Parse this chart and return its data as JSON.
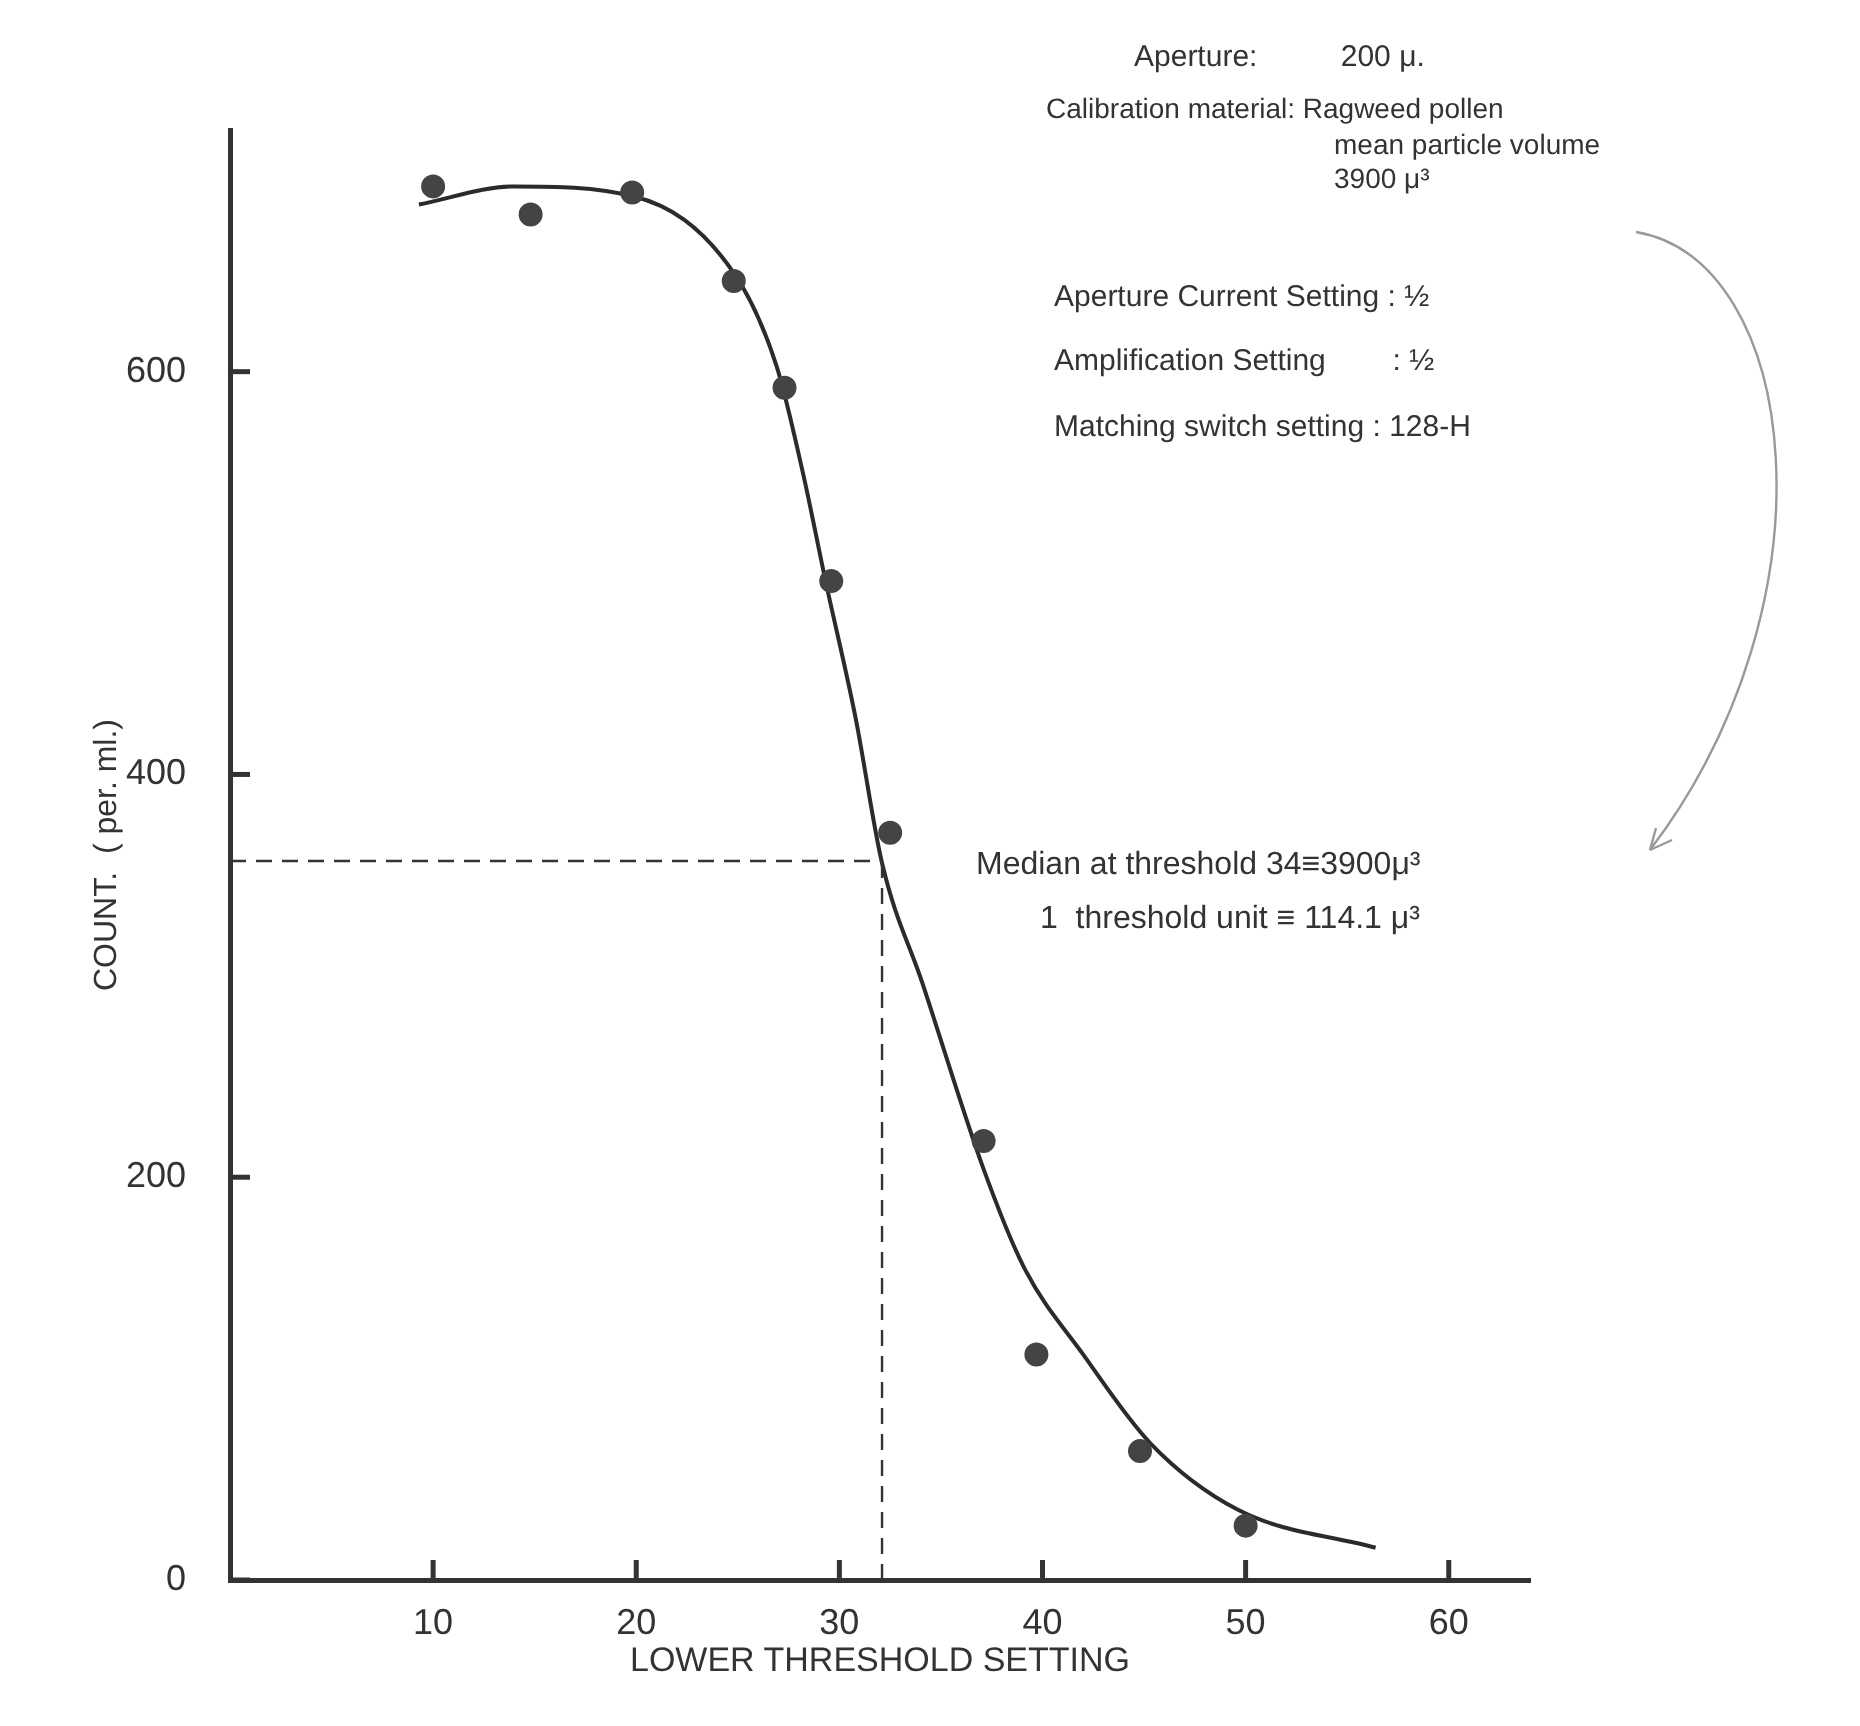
{
  "chart_data": {
    "type": "scatter",
    "xlabel": "LOWER THRESHOLD SETTING",
    "ylabel": "COUNT.  ( per. ml.)",
    "xlim": [
      0,
      64
    ],
    "xticks": [
      10,
      20,
      30,
      40,
      50,
      60
    ],
    "ylim": [
      0,
      720
    ],
    "yticks": [
      0,
      200,
      400,
      600
    ],
    "series": [
      {
        "type": "scatter",
        "marker": "circle",
        "color": "#444444",
        "x": [
          10.0,
          14.8,
          19.8,
          24.8,
          27.3,
          29.6,
          32.5,
          37.1,
          39.7,
          44.8,
          50.0
        ],
        "values": [
          692,
          678,
          689,
          645,
          592,
          496,
          371,
          218,
          112,
          64,
          27
        ]
      },
      {
        "type": "line",
        "marker": "none",
        "line_style": "solid",
        "color": "#2b2b2b",
        "x": [
          9.3,
          14.0,
          19.9,
          24.8,
          26.9,
          28.2,
          29.3,
          30.8,
          32.1,
          34.1,
          37.1,
          39.1,
          42.0,
          45.3,
          49.6,
          56.4
        ],
        "values": [
          683,
          692,
          687,
          649,
          603,
          550,
          497,
          428,
          356,
          296,
          204,
          155,
          112,
          68,
          35,
          16
        ]
      }
    ],
    "ref_lines": [
      {
        "axis": "y",
        "value": 357,
        "line_style": "dashed"
      },
      {
        "axis": "x",
        "value": 32.1,
        "line_style": "dashed"
      }
    ],
    "annotations": [
      "Aperture:          200 μ.",
      "Calibration material: Ragweed pollen\nmean particle volume\n3900 μ³",
      "Aperture Current Setting : ½",
      "Amplification Setting        : ½",
      "Matching switch setting : 128-H",
      "Median at threshold 34≡3900μ³",
      "1  threshold unit ≡ 114.1 μ³"
    ]
  }
}
